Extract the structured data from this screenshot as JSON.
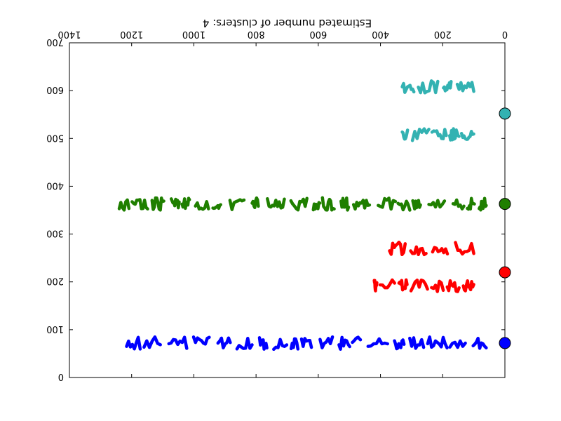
{
  "chart_data": {
    "type": "scatter",
    "orientation": "rotated-180",
    "xlim": [
      0,
      1400
    ],
    "ylim": [
      0,
      700
    ],
    "xticks": [
      0,
      200,
      400,
      600,
      800,
      1000,
      1200,
      1400
    ],
    "yticks": [
      0,
      100,
      200,
      300,
      400,
      500,
      600,
      700
    ],
    "xlabel": "Estimated number of clusters: 4",
    "ylabel": "",
    "title": "",
    "grid": false,
    "clusters": [
      {
        "color": "#0000ff",
        "center_y": 72,
        "rows": [
          [
            72,
            60,
            1230
          ]
        ]
      },
      {
        "color": "#ff0000",
        "center_y": 220,
        "rows": [
          [
            192,
            100,
            420
          ],
          [
            270,
            100,
            390
          ]
        ]
      },
      {
        "color": "#1f7f00",
        "center_y": 363,
        "rows": [
          [
            363,
            60,
            1240
          ]
        ]
      },
      {
        "color": "#33b2b2",
        "center_y": 552,
        "rows": [
          [
            508,
            100,
            330
          ],
          [
            608,
            100,
            330
          ]
        ]
      }
    ],
    "cluster_markers": [
      {
        "x": 0,
        "y": 72,
        "color": "#0000ff"
      },
      {
        "x": 0,
        "y": 220,
        "color": "#ff0000"
      },
      {
        "x": 0,
        "y": 363,
        "color": "#1f7f00"
      },
      {
        "x": 0,
        "y": 552,
        "color": "#33b2b2"
      }
    ]
  }
}
